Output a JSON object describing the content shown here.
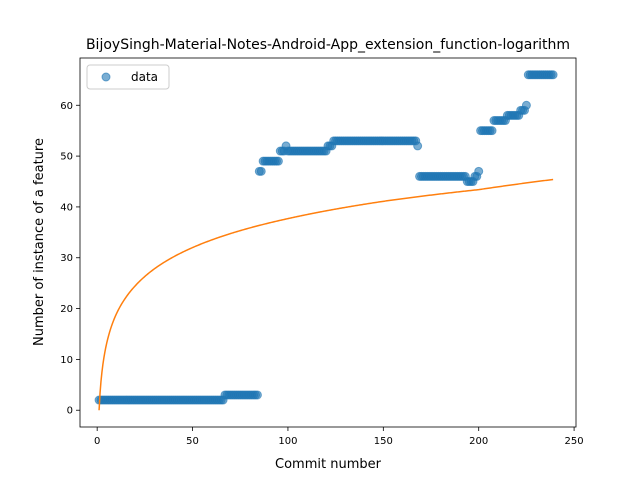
{
  "chart_data": {
    "type": "scatter",
    "title": "BijoySingh-Material-Notes-Android-App_extension_function-logarithm",
    "xlabel": "Commit number",
    "ylabel": "Number of instance of a feature",
    "xlim": [
      -9,
      251
    ],
    "ylim": [
      -3.3,
      69.3
    ],
    "xticks": [
      0,
      50,
      100,
      150,
      200,
      250
    ],
    "yticks": [
      0,
      10,
      20,
      30,
      40,
      50,
      60
    ],
    "legend": {
      "placement": "top-left",
      "entries": [
        "data"
      ]
    },
    "colors": {
      "scatter": "#1f77b4",
      "fit": "#ff7f0e"
    },
    "series": [
      {
        "name": "data",
        "kind": "scatter",
        "segments": [
          {
            "x_start": 1,
            "x_end": 66,
            "y": 2
          },
          {
            "x_start": 67,
            "x_end": 84,
            "y": 3
          },
          {
            "x_start": 85,
            "x_end": 86,
            "y": 47
          },
          {
            "x_start": 87,
            "x_end": 95,
            "y": 49
          },
          {
            "x_start": 96,
            "x_end": 98,
            "y": 51
          },
          {
            "x_start": 99,
            "x_end": 99,
            "y": 52
          },
          {
            "x_start": 100,
            "x_end": 120,
            "y": 51
          },
          {
            "x_start": 121,
            "x_end": 123,
            "y": 52
          },
          {
            "x_start": 124,
            "x_end": 167,
            "y": 53
          },
          {
            "x_start": 168,
            "x_end": 168,
            "y": 52
          },
          {
            "x_start": 169,
            "x_end": 193,
            "y": 46
          },
          {
            "x_start": 194,
            "x_end": 197,
            "y": 45
          },
          {
            "x_start": 198,
            "x_end": 199,
            "y": 46
          },
          {
            "x_start": 200,
            "x_end": 200,
            "y": 47
          },
          {
            "x_start": 201,
            "x_end": 207,
            "y": 55
          },
          {
            "x_start": 208,
            "x_end": 214,
            "y": 57
          },
          {
            "x_start": 215,
            "x_end": 221,
            "y": 58
          },
          {
            "x_start": 222,
            "x_end": 224,
            "y": 59
          },
          {
            "x_start": 225,
            "x_end": 225,
            "y": 60
          },
          {
            "x_start": 226,
            "x_end": 239,
            "y": 66
          }
        ]
      },
      {
        "name": "",
        "kind": "line",
        "model": "logarithm",
        "x_range": [
          1,
          239
        ],
        "points": [
          [
            1,
            0
          ],
          [
            5,
            13.2
          ],
          [
            10,
            18.9
          ],
          [
            20,
            24.5
          ],
          [
            50,
            32.0
          ],
          [
            100,
            37.7
          ],
          [
            150,
            41.1
          ],
          [
            200,
            43.4
          ],
          [
            239,
            45.4
          ]
        ]
      }
    ]
  }
}
